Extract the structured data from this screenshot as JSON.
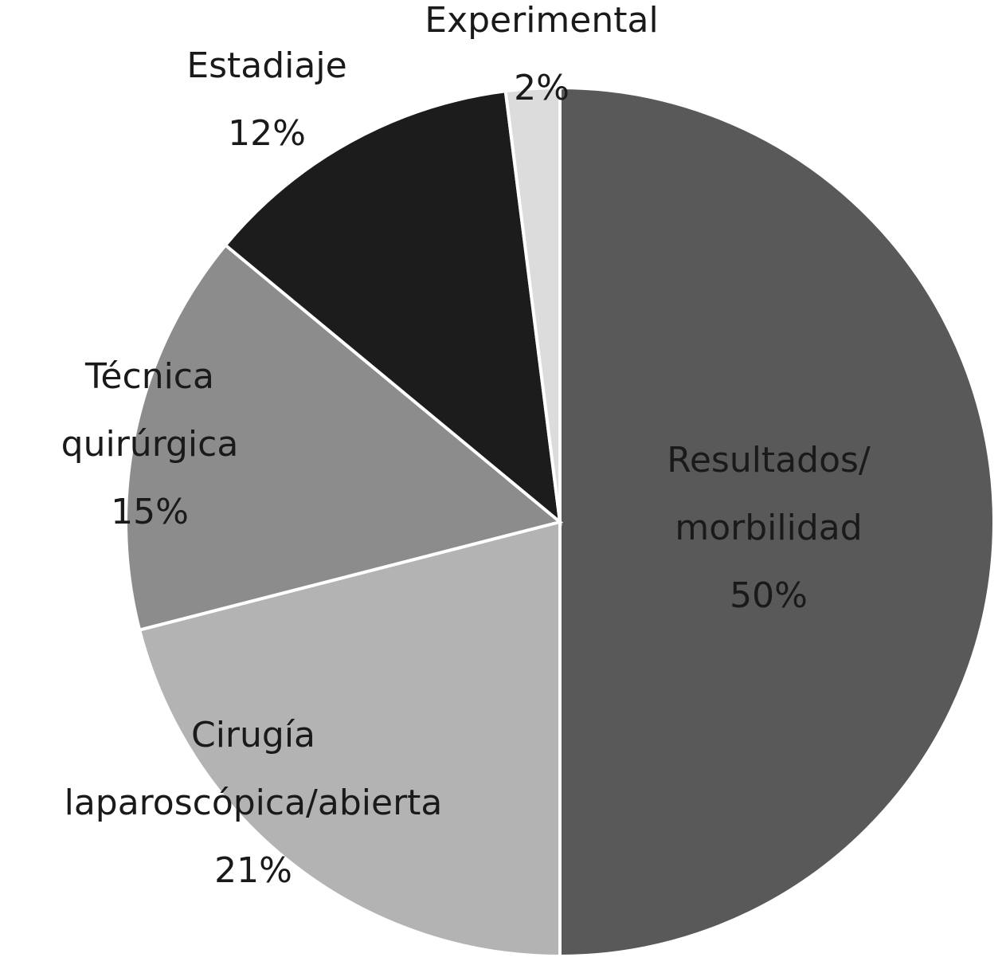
{
  "chart_data": {
    "type": "pie",
    "categories": [
      "Resultados/\nmorbilidad",
      "Cirugía\nlaparoscópica/abierta",
      "Técnica\nquirúrgica",
      "Estadiaje",
      "Experimental"
    ],
    "values": [
      50,
      21,
      15,
      12,
      2
    ],
    "value_labels": [
      "50%",
      "21%",
      "15%",
      "12%",
      "2%"
    ],
    "colors": [
      "#595959",
      "#b3b3b3",
      "#8c8c8c",
      "#1c1c1c",
      "#dcdcdc"
    ]
  }
}
